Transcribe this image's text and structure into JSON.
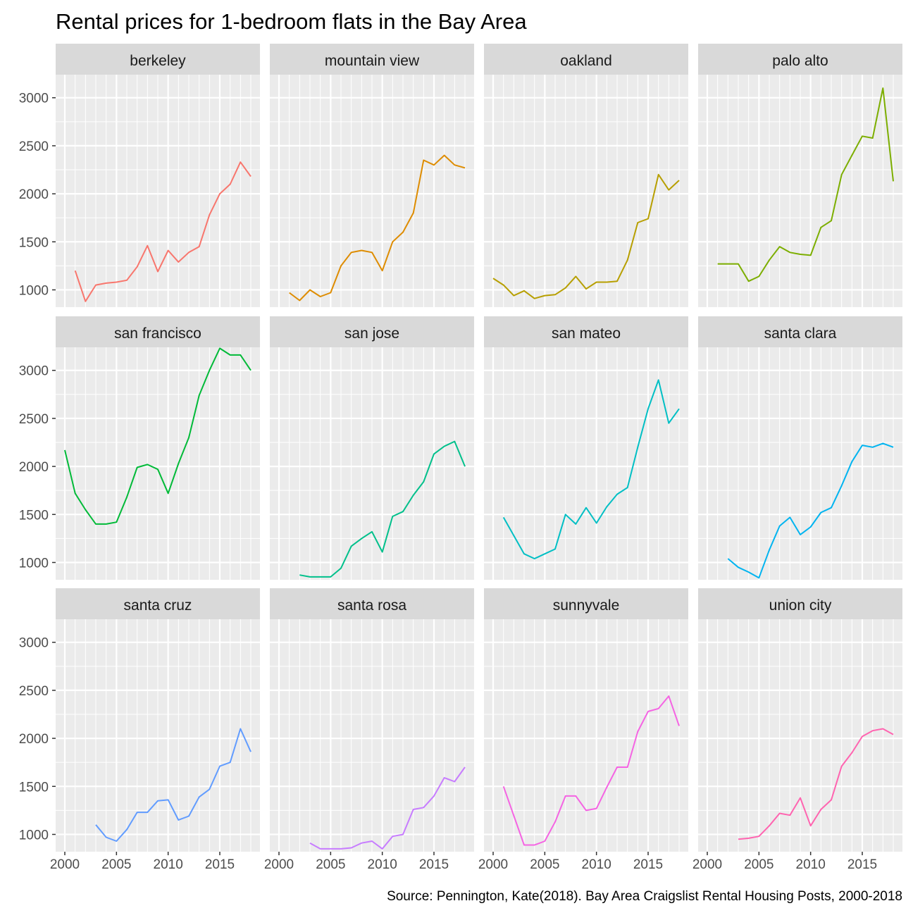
{
  "chart_data": {
    "type": "line",
    "title": "Rental prices for 1-bedroom flats in the Bay Area",
    "caption": "Source: Pennington, Kate(2018). Bay Area Craigslist Rental Housing Posts, 2000-2018",
    "xlabel": "",
    "ylabel": "",
    "xlim": [
      2000,
      2018
    ],
    "ylim": [
      820,
      3240
    ],
    "x_ticks": [
      2000,
      2005,
      2010,
      2015
    ],
    "y_ticks": [
      1000,
      1500,
      2000,
      2500,
      3000
    ],
    "grid": true,
    "facets": [
      {
        "name": "berkeley",
        "color": "#F8766D",
        "x": [
          2001,
          2002,
          2003,
          2004,
          2005,
          2006,
          2007,
          2008,
          2009,
          2010,
          2011,
          2012,
          2013,
          2014,
          2015,
          2016,
          2017,
          2018
        ],
        "y": [
          1200,
          880,
          1050,
          1070,
          1080,
          1100,
          1240,
          1460,
          1190,
          1410,
          1290,
          1390,
          1450,
          1780,
          2000,
          2100,
          2330,
          2180
        ]
      },
      {
        "name": "mountain view",
        "color": "#DE8C00",
        "x": [
          2001,
          2002,
          2003,
          2004,
          2005,
          2006,
          2007,
          2008,
          2009,
          2010,
          2011,
          2012,
          2013,
          2014,
          2015,
          2016,
          2017,
          2018
        ],
        "y": [
          970,
          890,
          1000,
          930,
          970,
          1250,
          1390,
          1410,
          1390,
          1200,
          1500,
          1600,
          1800,
          2350,
          2300,
          2400,
          2300,
          2270
        ]
      },
      {
        "name": "oakland",
        "color": "#B79F00",
        "x": [
          2000,
          2001,
          2002,
          2003,
          2004,
          2005,
          2006,
          2007,
          2008,
          2009,
          2010,
          2011,
          2012,
          2013,
          2014,
          2015,
          2016,
          2017,
          2018
        ],
        "y": [
          1120,
          1050,
          940,
          990,
          910,
          940,
          950,
          1020,
          1140,
          1010,
          1080,
          1080,
          1090,
          1310,
          1700,
          1740,
          2200,
          2040,
          2140
        ]
      },
      {
        "name": "palo alto",
        "color": "#7CAE00",
        "x": [
          2001,
          2002,
          2003,
          2004,
          2005,
          2006,
          2007,
          2008,
          2009,
          2010,
          2011,
          2012,
          2013,
          2014,
          2015,
          2016,
          2017,
          2018
        ],
        "y": [
          1270,
          1270,
          1270,
          1090,
          1140,
          1310,
          1450,
          1390,
          1370,
          1360,
          1650,
          1720,
          2200,
          2400,
          2600,
          2580,
          3100,
          2130
        ]
      },
      {
        "name": "san francisco",
        "color": "#00BA38",
        "x": [
          2000,
          2001,
          2002,
          2003,
          2004,
          2005,
          2006,
          2007,
          2008,
          2009,
          2010,
          2011,
          2012,
          2013,
          2014,
          2015,
          2016,
          2017,
          2018
        ],
        "y": [
          2170,
          1720,
          1550,
          1400,
          1400,
          1420,
          1680,
          1990,
          2020,
          1970,
          1720,
          2030,
          2300,
          2740,
          3000,
          3230,
          3160,
          3160,
          3000
        ]
      },
      {
        "name": "san jose",
        "color": "#00C08B",
        "x": [
          2002,
          2003,
          2004,
          2005,
          2006,
          2007,
          2008,
          2009,
          2010,
          2011,
          2012,
          2013,
          2014,
          2015,
          2016,
          2017,
          2018
        ],
        "y": [
          870,
          850,
          850,
          850,
          940,
          1170,
          1250,
          1320,
          1110,
          1480,
          1530,
          1700,
          1840,
          2130,
          2210,
          2260,
          2000
        ]
      },
      {
        "name": "san mateo",
        "color": "#00BFC4",
        "x": [
          2001,
          2003,
          2004,
          2005,
          2006,
          2007,
          2008,
          2009,
          2010,
          2011,
          2012,
          2013,
          2014,
          2015,
          2016,
          2017,
          2018
        ],
        "y": [
          1470,
          1090,
          1040,
          1090,
          1140,
          1500,
          1400,
          1570,
          1410,
          1580,
          1710,
          1780,
          2200,
          2600,
          2900,
          2450,
          2600
        ]
      },
      {
        "name": "santa clara",
        "color": "#00B4F0",
        "x": [
          2002,
          2003,
          2004,
          2005,
          2006,
          2007,
          2008,
          2009,
          2010,
          2011,
          2012,
          2013,
          2014,
          2015,
          2016,
          2017,
          2018
        ],
        "y": [
          1040,
          950,
          900,
          840,
          1130,
          1380,
          1470,
          1290,
          1370,
          1520,
          1570,
          1800,
          2050,
          2220,
          2200,
          2240,
          2200
        ]
      },
      {
        "name": "santa cruz",
        "color": "#619CFF",
        "x": [
          2003,
          2004,
          2005,
          2006,
          2007,
          2008,
          2009,
          2010,
          2011,
          2012,
          2013,
          2014,
          2015,
          2016,
          2017,
          2018
        ],
        "y": [
          1100,
          970,
          930,
          1050,
          1230,
          1230,
          1350,
          1360,
          1150,
          1190,
          1390,
          1470,
          1710,
          1750,
          2100,
          1860
        ]
      },
      {
        "name": "santa rosa",
        "color": "#C77CFF",
        "x": [
          2003,
          2004,
          2005,
          2006,
          2007,
          2008,
          2009,
          2010,
          2011,
          2012,
          2013,
          2014,
          2015,
          2016,
          2017,
          2018
        ],
        "y": [
          910,
          850,
          850,
          850,
          860,
          910,
          930,
          850,
          980,
          1000,
          1260,
          1280,
          1400,
          1590,
          1550,
          1700
        ]
      },
      {
        "name": "sunnyvale",
        "color": "#F564E3",
        "x": [
          2001,
          2003,
          2004,
          2005,
          2006,
          2007,
          2008,
          2009,
          2010,
          2011,
          2012,
          2013,
          2014,
          2015,
          2016,
          2017,
          2018
        ],
        "y": [
          1500,
          890,
          890,
          930,
          1130,
          1400,
          1400,
          1250,
          1270,
          1490,
          1700,
          1700,
          2070,
          2280,
          2310,
          2440,
          2130
        ]
      },
      {
        "name": "union city",
        "color": "#FF64B0",
        "x": [
          2003,
          2004,
          2005,
          2006,
          2007,
          2008,
          2009,
          2010,
          2011,
          2012,
          2013,
          2014,
          2015,
          2016,
          2017,
          2018
        ],
        "y": [
          950,
          960,
          980,
          1090,
          1220,
          1200,
          1380,
          1090,
          1260,
          1360,
          1710,
          1850,
          2020,
          2080,
          2100,
          2040
        ]
      }
    ]
  }
}
